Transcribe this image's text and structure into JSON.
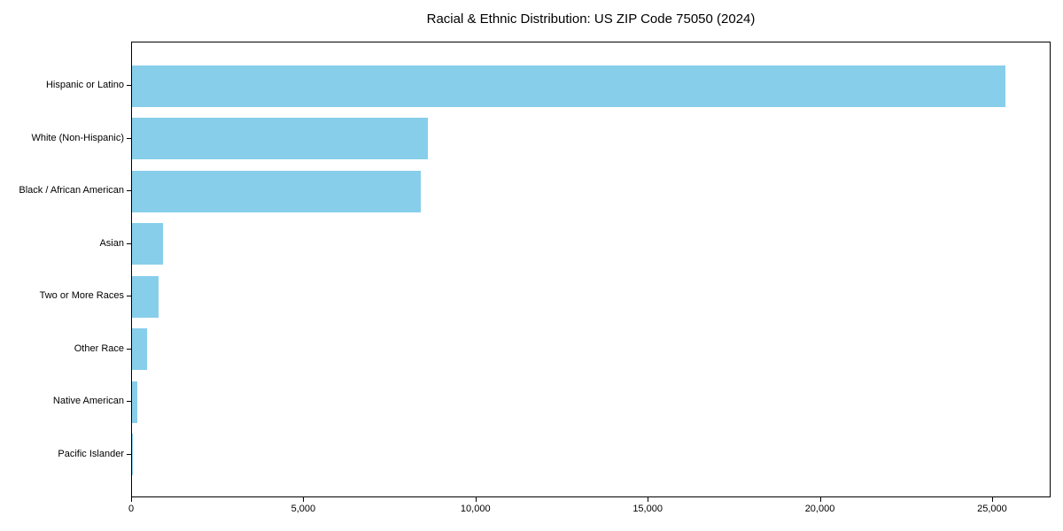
{
  "chart_data": {
    "type": "bar",
    "orientation": "horizontal",
    "title": "Racial & Ethnic Distribution: US ZIP Code 75050 (2024)",
    "categories": [
      "Hispanic or Latino",
      "White (Non-Hispanic)",
      "Black / African American",
      "Asian",
      "Two or More Races",
      "Other Race",
      "Native American",
      "Pacific Islander"
    ],
    "values": [
      25400,
      8600,
      8400,
      900,
      780,
      450,
      160,
      20
    ],
    "xlabel": "",
    "ylabel": "",
    "xlim": [
      0,
      26700
    ],
    "xticks": [
      0,
      5000,
      10000,
      15000,
      20000,
      25000
    ],
    "xtick_labels": [
      "0",
      "5,000",
      "10,000",
      "15,000",
      "20,000",
      "25,000"
    ],
    "bar_color": "#87CEEB",
    "text_color": "#000000",
    "background_color": "#ffffff",
    "grid": false,
    "legend": null
  }
}
